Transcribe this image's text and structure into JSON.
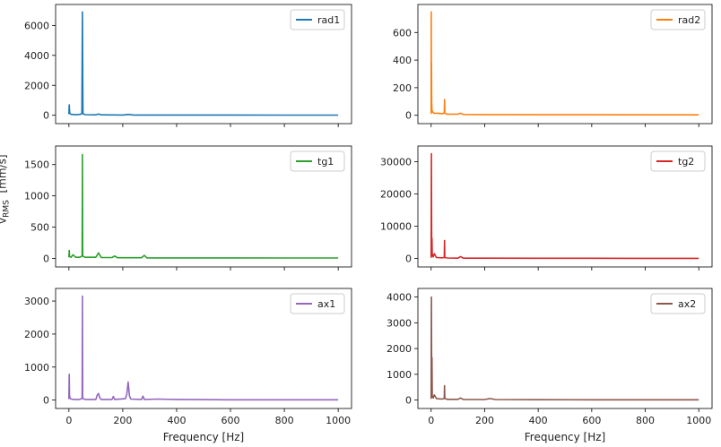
{
  "figure": {
    "ylabel_main": "v",
    "ylabel_sub": "RMS",
    "ylabel_unit": "[mm/s]",
    "xlabel": "Frequency [Hz]"
  },
  "chart_data": [
    {
      "type": "line",
      "name": "rad1",
      "color": "#1f77b4",
      "xlim": [
        0,
        1000
      ],
      "ylim": [
        0,
        7000
      ],
      "yticks": [
        0,
        2000,
        4000,
        6000
      ],
      "xticks": [
        0,
        200,
        400,
        600,
        800,
        1000
      ],
      "legend": "top-right",
      "x": [
        0,
        1,
        2,
        3,
        5,
        10,
        20,
        30,
        40,
        48,
        50,
        52,
        60,
        100,
        110,
        120,
        200,
        220,
        240,
        400,
        500,
        600,
        800,
        1000
      ],
      "y": [
        80,
        700,
        350,
        150,
        80,
        60,
        50,
        50,
        60,
        100,
        6900,
        100,
        40,
        30,
        90,
        30,
        20,
        60,
        20,
        15,
        20,
        15,
        10,
        10
      ]
    },
    {
      "type": "line",
      "name": "rad2",
      "color": "#ff7f0e",
      "xlim": [
        0,
        1000
      ],
      "ylim": [
        0,
        760
      ],
      "yticks": [
        0,
        200,
        400,
        600
      ],
      "xticks": [
        0,
        200,
        400,
        600,
        800,
        1000
      ],
      "legend": "top-right",
      "x": [
        0,
        0.5,
        1,
        1.5,
        2,
        2.5,
        3,
        4,
        5,
        8,
        10,
        20,
        40,
        49,
        50,
        51,
        60,
        100,
        110,
        120,
        200,
        400,
        600,
        800,
        1000
      ],
      "y": [
        10,
        750,
        100,
        380,
        60,
        80,
        40,
        30,
        25,
        20,
        15,
        15,
        12,
        15,
        115,
        15,
        8,
        8,
        15,
        6,
        5,
        4,
        4,
        3,
        3
      ]
    },
    {
      "type": "line",
      "name": "tg1",
      "color": "#2ca02c",
      "xlim": [
        0,
        1000
      ],
      "ylim": [
        0,
        1700
      ],
      "yticks": [
        0,
        500,
        1000,
        1500
      ],
      "xticks": [
        0,
        200,
        400,
        600,
        800,
        1000
      ],
      "legend": "top-right",
      "x": [
        0,
        1,
        2,
        4,
        8,
        15,
        25,
        40,
        49,
        50,
        51,
        60,
        100,
        110,
        120,
        160,
        170,
        180,
        270,
        280,
        290,
        400,
        600,
        800,
        1000
      ],
      "y": [
        20,
        130,
        40,
        25,
        20,
        60,
        20,
        20,
        40,
        1660,
        40,
        20,
        20,
        90,
        15,
        15,
        40,
        12,
        12,
        50,
        10,
        10,
        10,
        8,
        8
      ]
    },
    {
      "type": "line",
      "name": "tg2",
      "color": "#d62728",
      "xlim": [
        0,
        1000
      ],
      "ylim": [
        0,
        33000
      ],
      "yticks": [
        0,
        10000,
        20000,
        30000
      ],
      "xticks": [
        0,
        200,
        400,
        600,
        800,
        1000
      ],
      "legend": "top-right",
      "x": [
        0,
        1,
        2,
        3,
        4,
        5,
        8,
        12,
        20,
        40,
        49,
        50,
        51,
        60,
        100,
        110,
        120,
        200,
        400,
        600,
        800,
        1000
      ],
      "y": [
        200,
        32500,
        1000,
        6300,
        800,
        1200,
        500,
        1500,
        300,
        200,
        300,
        5600,
        300,
        150,
        100,
        600,
        100,
        100,
        80,
        60,
        50,
        50
      ]
    },
    {
      "type": "line",
      "name": "ax1",
      "color": "#9467bd",
      "xlim": [
        0,
        1000
      ],
      "ylim": [
        0,
        3200
      ],
      "yticks": [
        0,
        1000,
        2000,
        3000
      ],
      "xticks": [
        0,
        200,
        400,
        600,
        800,
        1000
      ],
      "legend": "top-right",
      "x": [
        0,
        1,
        2,
        4,
        8,
        20,
        40,
        49,
        50,
        51,
        60,
        100,
        105,
        110,
        115,
        120,
        160,
        165,
        170,
        210,
        215,
        220,
        225,
        230,
        270,
        275,
        280,
        330,
        400,
        500,
        600,
        800,
        1000
      ],
      "y": [
        30,
        780,
        150,
        60,
        30,
        20,
        20,
        50,
        3150,
        50,
        20,
        20,
        150,
        200,
        60,
        20,
        20,
        110,
        20,
        40,
        180,
        550,
        120,
        30,
        20,
        120,
        20,
        30,
        20,
        15,
        10,
        10,
        10
      ]
    },
    {
      "type": "line",
      "name": "ax2",
      "color": "#8c564b",
      "xlim": [
        0,
        1000
      ],
      "ylim": [
        0,
        4100
      ],
      "yticks": [
        0,
        1000,
        2000,
        3000,
        4000
      ],
      "xticks": [
        0,
        200,
        400,
        600,
        800,
        1000
      ],
      "legend": "top-right",
      "x": [
        0,
        1,
        2,
        3,
        4,
        5,
        8,
        12,
        20,
        40,
        49,
        50,
        51,
        60,
        100,
        110,
        120,
        200,
        220,
        240,
        400,
        600,
        800,
        1000
      ],
      "y": [
        50,
        4000,
        300,
        1650,
        150,
        120,
        80,
        200,
        60,
        40,
        60,
        560,
        60,
        30,
        30,
        80,
        25,
        20,
        60,
        20,
        15,
        12,
        10,
        10
      ]
    }
  ]
}
